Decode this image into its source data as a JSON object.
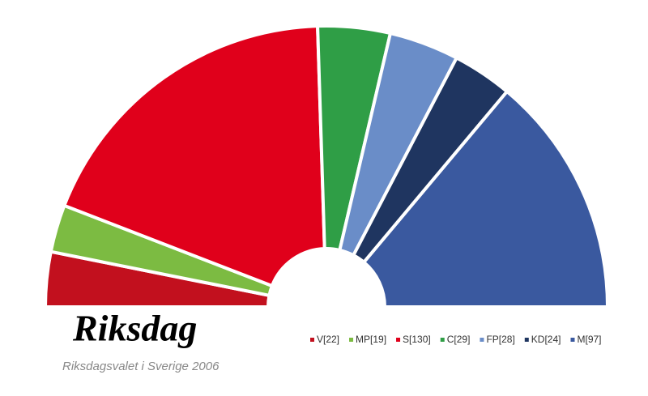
{
  "chart_data": {
    "type": "parliament",
    "title": "Riksdag",
    "subtitle": "Riksdagsvalet i Sverige 2006",
    "labels": [
      "V[22]",
      "MP[19]",
      "S[130]",
      "C[29]",
      "FP[28]",
      "KD[24]",
      "M[97]"
    ],
    "values": [
      22,
      19,
      130,
      29,
      28,
      24,
      97
    ],
    "colors": [
      "#c2101e",
      "#7cbb42",
      "#e0001b",
      "#2f9e46",
      "#6a8dc8",
      "#1f3560",
      "#3a599f"
    ]
  }
}
